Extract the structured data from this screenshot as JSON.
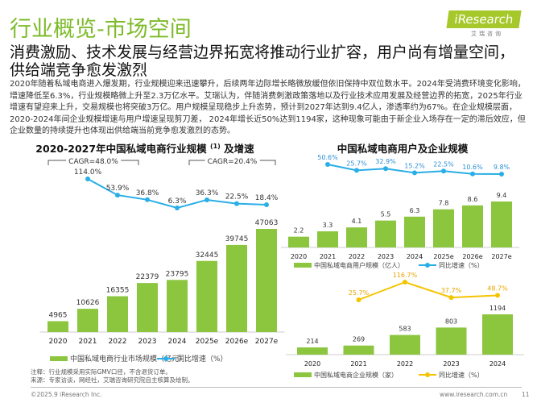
{
  "header": {
    "title": "行业概览-市场空间",
    "logo": "iResearch",
    "logo_sub": "艾瑞咨询"
  },
  "subtitle": "消费激励、技术发展与经营边界拓宽将推动行业扩容，用户尚有增量空间，供给端竞争愈发激烈",
  "paragraph": "2020年随着私域电商进入爆发期，行业规模迎来迅速攀升，后续两年边际增长略微放缓但依旧保持中双位数水平。2024年受消费环境变化影响，增速降低至6.3%，行业规模略微上升至2.3万亿水平。艾瑞认为，伴随消费刺激政策落地以及行业技术应用发展及经营边界的拓宽，2025年行业增速有望迎来上升，交易规模也将突破3万亿。用户规模呈现稳步上升态势，预计到2027年达到9.4亿人，渗透率约为67%。在企业规模层面，2020-2024年间企业规模增速与用户增速呈现剪刀差， 2024年增长近50%达到1194家，这种现象可能由于新企业入场存在一定的滞后效应，但企业数量的持续提升也体现出供给端当前竞争愈发激烈的态势。",
  "colors": {
    "bar": "#8cc63f",
    "line_blue": "#29aee6",
    "line_yellow": "#f5c400",
    "label_blue": "#2b8fd6",
    "label_orange": "#e8a500",
    "title_green": "#7dbb2a"
  },
  "chart_data": [
    {
      "type": "bar+line",
      "title": "2020-2027年中国私域电商行业规模",
      "title_sup": "(1)",
      "title_suffix": " 及增速",
      "categories": [
        "2020",
        "2021",
        "2022",
        "2023",
        "2024",
        "2025e",
        "2026e",
        "2027e"
      ],
      "series": [
        {
          "name": "中国私域电商行业市场规模（亿元）",
          "type": "bar",
          "values": [
            4965,
            10626,
            16355,
            22379,
            23795,
            32445,
            39745,
            47063
          ]
        },
        {
          "name": "同比增速（%）",
          "type": "line",
          "values": [
            null,
            114.0,
            53.9,
            36.8,
            6.3,
            36.3,
            22.5,
            18.4
          ]
        }
      ],
      "annotations": [
        "CAGR=48.0%",
        "CAGR=20.4%"
      ]
    },
    {
      "type": "bar+line",
      "title": "中国私域电商用户及企业规模",
      "categories": [
        "2020",
        "2021",
        "2022",
        "2023",
        "2024",
        "2025e",
        "2026e",
        "2027e"
      ],
      "series": [
        {
          "name": "中国私域电商用户规模（亿人）",
          "type": "bar",
          "values": [
            2.2,
            3.3,
            4.1,
            5.5,
            6.3,
            7.8,
            8.6,
            9.4
          ]
        },
        {
          "name": "同比增速（%）",
          "type": "line",
          "values": [
            null,
            50.6,
            25.7,
            32.9,
            15.2,
            22.5,
            10.6,
            9.8
          ]
        }
      ]
    },
    {
      "type": "bar+line",
      "categories": [
        "2020",
        "2021",
        "2022",
        "2023",
        "2024"
      ],
      "series": [
        {
          "name": "中国私域电商企业规模（家）",
          "type": "bar",
          "values": [
            214,
            269,
            583,
            803,
            1194
          ]
        },
        {
          "name": "同比增速（%）",
          "type": "line",
          "values": [
            null,
            25.7,
            116.7,
            37.7,
            48.7
          ]
        }
      ]
    }
  ],
  "notes": [
    "注释：行业规模采用实际GMV口径，不含退货订单。",
    "来源：专家访谈，网经社，艾瑞咨询研究院自主核算及绘制。"
  ],
  "footer": {
    "copyright": "©2025.9 iResearch Inc.",
    "url": "www.iresearch.com.cn",
    "page": "11"
  }
}
